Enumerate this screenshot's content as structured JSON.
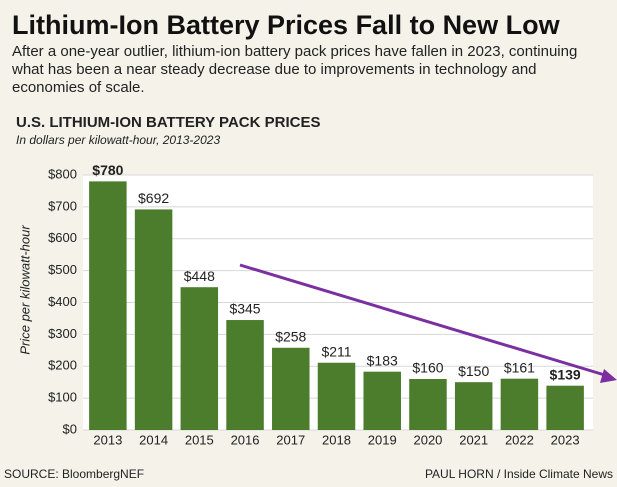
{
  "chart_data": {
    "type": "bar",
    "title": "Lithium-Ion Battery Prices Fall to New Low",
    "subtitle": "After a one-year outlier, lithium-ion battery pack prices have fallen in 2023, continuing what has been a near steady decrease due to improvements in technology and economies of scale.",
    "chart_title": "U.S. LITHIUM-ION BATTERY PACK PRICES",
    "chart_subtitle": "In dollars per kilowatt-hour, 2013-2023",
    "y_label": "Price per kilowatt-hour",
    "categories": [
      "2013",
      "2014",
      "2015",
      "2016",
      "2017",
      "2018",
      "2019",
      "2020",
      "2021",
      "2022",
      "2023"
    ],
    "values": [
      780,
      692,
      448,
      345,
      258,
      211,
      183,
      160,
      150,
      161,
      139
    ],
    "value_labels": [
      "$780",
      "$692",
      "$448",
      "$345",
      "$258",
      "$211",
      "$183",
      "$160",
      "$150",
      "$161",
      "$139"
    ],
    "color": "#4b7d2c",
    "ylim": [
      0,
      800
    ],
    "yticks": [
      {
        "value": 0,
        "label": "$0"
      },
      {
        "value": 100,
        "label": "$100"
      },
      {
        "value": 200,
        "label": "$200"
      },
      {
        "value": 300,
        "label": "$300"
      },
      {
        "value": 400,
        "label": "$400"
      },
      {
        "value": 500,
        "label": "$500"
      },
      {
        "value": 600,
        "label": "$600"
      },
      {
        "value": 700,
        "label": "$700"
      },
      {
        "value": 800,
        "label": "$800"
      }
    ],
    "grid": true,
    "source": "SOURCE: BloombergNEF",
    "credit": "PAUL HORN / Inside Climate News"
  }
}
